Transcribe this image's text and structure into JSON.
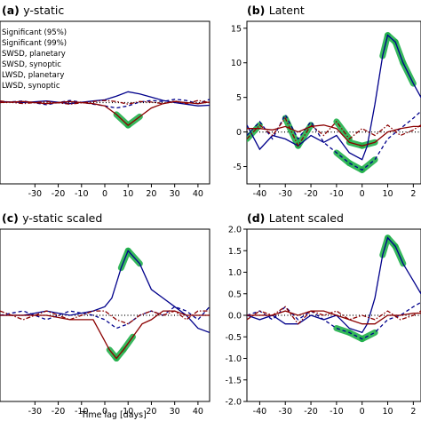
{
  "legend": [
    "Significant (95%)",
    "Significant (99%)",
    "SWSD, planetary",
    "SWSD, synoptic",
    "LWSD, planetary",
    "LWSD, synoptic"
  ],
  "colors": {
    "sig95": "#b5e61d",
    "sig99": "#22b14c",
    "sw_planetary": "#00008b",
    "sw_synoptic": "#00008b",
    "lw_planetary": "#8b0000",
    "lw_synoptic": "#8b0000",
    "zero_line": "#000000"
  },
  "chart_data": [
    {
      "type": "line",
      "panel": "(a)",
      "title": "y-static",
      "xlabel": "",
      "ylabel": "",
      "xlim": [
        -45,
        45
      ],
      "ylim": [
        -15,
        15
      ],
      "xticks": [
        "-30",
        "-20",
        "-10",
        "0",
        "10",
        "20",
        "30",
        "40"
      ],
      "yticks": [],
      "series": [
        {
          "name": "SWSD, planetary",
          "x": [
            -45,
            -35,
            -25,
            -15,
            -5,
            0,
            5,
            10,
            15,
            20,
            25,
            30,
            35,
            40,
            45
          ],
          "y": [
            0.2,
            0.0,
            0.3,
            -0.2,
            0.3,
            0.5,
            1.2,
            2.0,
            1.6,
            1.0,
            0.4,
            0.0,
            -0.3,
            -0.6,
            -0.5
          ]
        },
        {
          "name": "SWSD, synoptic",
          "x": [
            -45,
            -35,
            -25,
            -15,
            -5,
            0,
            5,
            10,
            15,
            20,
            25,
            30,
            35,
            40,
            45
          ],
          "y": [
            0.0,
            0.3,
            -0.4,
            0.4,
            -0.3,
            -0.6,
            -1.0,
            -0.6,
            0.1,
            0.4,
            0.2,
            0.6,
            0.4,
            -0.2,
            0.6
          ]
        },
        {
          "name": "LWSD, planetary",
          "x": [
            -45,
            -35,
            -25,
            -15,
            -5,
            0,
            5,
            10,
            15,
            20,
            25,
            30,
            35,
            40,
            45
          ],
          "y": [
            0.0,
            0.2,
            -0.2,
            0.2,
            -0.2,
            -0.6,
            -2.2,
            -4.2,
            -2.6,
            -1.0,
            -0.2,
            0.2,
            0.0,
            -0.2,
            0.1
          ]
        },
        {
          "name": "LWSD, synoptic",
          "x": [
            -45,
            -35,
            -25,
            -15,
            -5,
            0,
            5,
            10,
            15,
            20,
            25,
            30,
            35,
            40,
            45
          ],
          "y": [
            0.3,
            -0.2,
            0.2,
            -0.3,
            0.2,
            0.4,
            0.2,
            -0.3,
            0.2,
            0.1,
            -0.2,
            0.3,
            -0.2,
            0.4,
            0.0
          ]
        }
      ]
    },
    {
      "type": "line",
      "panel": "(b)",
      "title": "Latent",
      "xlabel": "",
      "ylabel": "",
      "xlim": [
        -45,
        23
      ],
      "ylim": [
        -7.5,
        16
      ],
      "xticks": [
        "-40",
        "-30",
        "-20",
        "-10",
        "0",
        "10",
        "2"
      ],
      "yticks": [
        "15",
        "10",
        "5",
        "0",
        "-5"
      ],
      "series": [
        {
          "name": "SWSD, planetary",
          "x": [
            -45,
            -40,
            -35,
            -30,
            -25,
            -20,
            -15,
            -10,
            -5,
            0,
            2,
            5,
            8,
            10,
            13,
            16,
            20,
            23
          ],
          "y": [
            1.0,
            -2.5,
            -0.5,
            -1.0,
            -2.0,
            -0.5,
            -1.5,
            -0.5,
            -3.0,
            -4.0,
            -2.0,
            4.0,
            11.0,
            14.0,
            13.0,
            10.0,
            7.0,
            5.0
          ]
        },
        {
          "name": "SWSD, synoptic",
          "x": [
            -45,
            -40,
            -35,
            -30,
            -25,
            -20,
            -15,
            -10,
            -5,
            0,
            5,
            10,
            15,
            20,
            23
          ],
          "y": [
            -0.5,
            1.5,
            -1.0,
            2.5,
            -1.0,
            1.5,
            -1.5,
            -3.0,
            -4.5,
            -5.5,
            -4.0,
            -1.0,
            0.5,
            2.0,
            3.0
          ]
        },
        {
          "name": "LWSD, planetary",
          "x": [
            -45,
            -40,
            -35,
            -30,
            -25,
            -20,
            -15,
            -10,
            -5,
            0,
            5,
            10,
            15,
            20,
            23
          ],
          "y": [
            0.5,
            0.5,
            0.3,
            0.8,
            0.0,
            0.8,
            1.0,
            0.5,
            -1.5,
            -2.0,
            -1.5,
            0.0,
            0.5,
            0.8,
            0.8
          ]
        },
        {
          "name": "LWSD, synoptic",
          "x": [
            -45,
            -40,
            -35,
            -30,
            -25,
            -20,
            -15,
            -10,
            -5,
            0,
            5,
            10,
            15,
            20,
            23
          ],
          "y": [
            -1.0,
            1.0,
            -0.5,
            2.0,
            -2.0,
            1.0,
            -0.5,
            1.5,
            -1.0,
            0.5,
            -0.5,
            1.0,
            -0.5,
            0.3,
            1.0
          ]
        }
      ]
    },
    {
      "type": "line",
      "panel": "(c)",
      "title": "y-static scaled",
      "xlabel": "Time lag [days]",
      "ylabel": "",
      "xlim": [
        -45,
        45
      ],
      "ylim": [
        -2,
        2
      ],
      "xticks": [
        "-30",
        "-20",
        "-10",
        "0",
        "10",
        "20",
        "30",
        "40"
      ],
      "yticks": [],
      "series": [
        {
          "name": "SWSD, planetary",
          "x": [
            -45,
            -35,
            -25,
            -15,
            -5,
            0,
            3,
            7,
            10,
            15,
            20,
            25,
            30,
            35,
            40,
            45
          ],
          "y": [
            0.0,
            0.0,
            0.1,
            0.0,
            0.1,
            0.2,
            0.4,
            1.1,
            1.5,
            1.2,
            0.6,
            0.4,
            0.2,
            0.0,
            -0.3,
            -0.4
          ]
        },
        {
          "name": "SWSD, synoptic",
          "x": [
            -45,
            -35,
            -25,
            -15,
            -5,
            0,
            5,
            10,
            15,
            20,
            25,
            30,
            35,
            40,
            45
          ],
          "y": [
            0.0,
            0.1,
            -0.1,
            0.1,
            0.0,
            -0.1,
            -0.3,
            -0.2,
            0.0,
            0.1,
            0.0,
            0.2,
            0.1,
            -0.1,
            0.2
          ]
        },
        {
          "name": "LWSD, planetary",
          "x": [
            -45,
            -35,
            -25,
            -15,
            -5,
            -2,
            2,
            5,
            8,
            12,
            16,
            20,
            25,
            30,
            35,
            40,
            45
          ],
          "y": [
            0.0,
            0.0,
            0.0,
            -0.1,
            -0.1,
            -0.4,
            -0.8,
            -1.0,
            -0.8,
            -0.5,
            -0.2,
            -0.1,
            0.1,
            0.1,
            0.0,
            0.0,
            0.0
          ]
        },
        {
          "name": "LWSD, synoptic",
          "x": [
            -45,
            -35,
            -25,
            -15,
            -5,
            0,
            5,
            10,
            15,
            20,
            25,
            30,
            35,
            40,
            45
          ],
          "y": [
            0.1,
            -0.1,
            0.1,
            -0.1,
            0.1,
            0.1,
            -0.1,
            -0.2,
            0.0,
            0.1,
            0.0,
            0.1,
            -0.1,
            0.1,
            0.1
          ]
        }
      ]
    },
    {
      "type": "line",
      "panel": "(d)",
      "title": "Latent scaled",
      "xlabel": "",
      "ylabel": "",
      "xlim": [
        -45,
        23
      ],
      "ylim": [
        -2,
        2
      ],
      "xticks": [
        "-40",
        "-30",
        "-20",
        "-10",
        "0",
        "10",
        "2"
      ],
      "yticks": [
        "2.0",
        "1.5",
        "1.0",
        "0.5",
        "0.0",
        "-0.5",
        "-1.0",
        "-1.5",
        "-2.0"
      ],
      "series": [
        {
          "name": "SWSD, planetary",
          "x": [
            -45,
            -40,
            -35,
            -30,
            -25,
            -20,
            -15,
            -10,
            -5,
            0,
            2,
            5,
            8,
            10,
            13,
            16,
            20,
            23
          ],
          "y": [
            0.0,
            -0.1,
            0.0,
            -0.2,
            -0.2,
            0.0,
            -0.1,
            0.0,
            -0.3,
            -0.4,
            -0.2,
            0.4,
            1.4,
            1.8,
            1.6,
            1.2,
            0.8,
            0.5
          ]
        },
        {
          "name": "SWSD, synoptic",
          "x": [
            -45,
            -40,
            -35,
            -30,
            -25,
            -20,
            -15,
            -10,
            -5,
            0,
            5,
            10,
            15,
            20,
            23
          ],
          "y": [
            0.0,
            0.1,
            -0.1,
            0.2,
            -0.1,
            0.1,
            -0.1,
            -0.3,
            -0.4,
            -0.55,
            -0.4,
            -0.1,
            0.0,
            0.2,
            0.3
          ]
        },
        {
          "name": "LWSD, planetary",
          "x": [
            -45,
            -40,
            -35,
            -30,
            -25,
            -20,
            -15,
            -10,
            -5,
            0,
            5,
            10,
            15,
            20,
            23
          ],
          "y": [
            0.0,
            0.0,
            0.0,
            0.1,
            0.0,
            0.1,
            0.1,
            0.0,
            -0.1,
            -0.2,
            -0.2,
            0.0,
            0.0,
            0.05,
            0.05
          ]
        },
        {
          "name": "LWSD, synoptic",
          "x": [
            -45,
            -40,
            -35,
            -30,
            -25,
            -20,
            -15,
            -10,
            -5,
            0,
            5,
            10,
            15,
            20,
            23
          ],
          "y": [
            -0.1,
            0.1,
            0.0,
            0.2,
            -0.2,
            0.1,
            0.0,
            0.1,
            -0.1,
            0.0,
            -0.1,
            0.1,
            -0.1,
            0.0,
            0.1
          ]
        }
      ]
    }
  ]
}
